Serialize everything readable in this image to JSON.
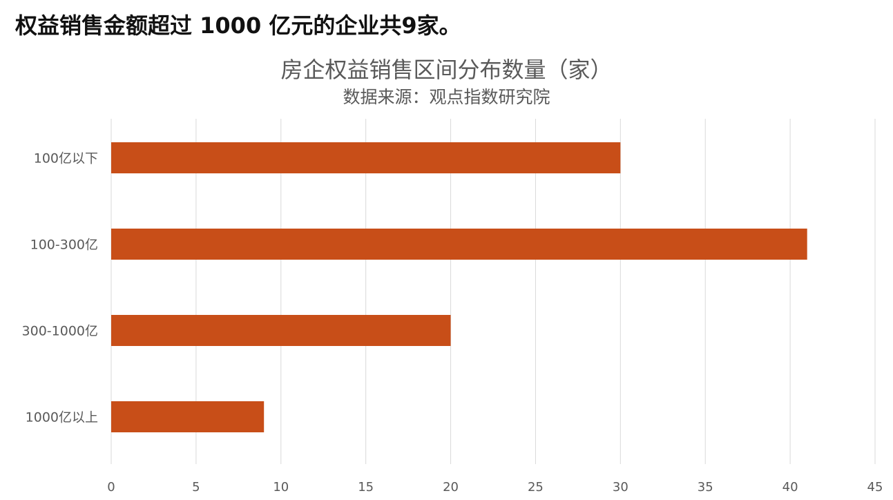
{
  "headline": "权益销售金额超过 1000 亿元的企业共9家。",
  "chart_data": {
    "type": "bar",
    "orientation": "horizontal",
    "title": "房企权益销售区间分布数量（家）",
    "subtitle": "数据来源：观点指数研究院",
    "categories": [
      "100亿以下",
      "100-300亿",
      "300-1000亿",
      "1000亿以上"
    ],
    "values": [
      30,
      41,
      20,
      9
    ],
    "xlim": [
      0,
      45
    ],
    "xticks": [
      0,
      5,
      10,
      15,
      20,
      25,
      30,
      35,
      40,
      45
    ],
    "grid": "vertical",
    "bar_color": "#C84E18",
    "grid_color": "#D9D9D9"
  }
}
